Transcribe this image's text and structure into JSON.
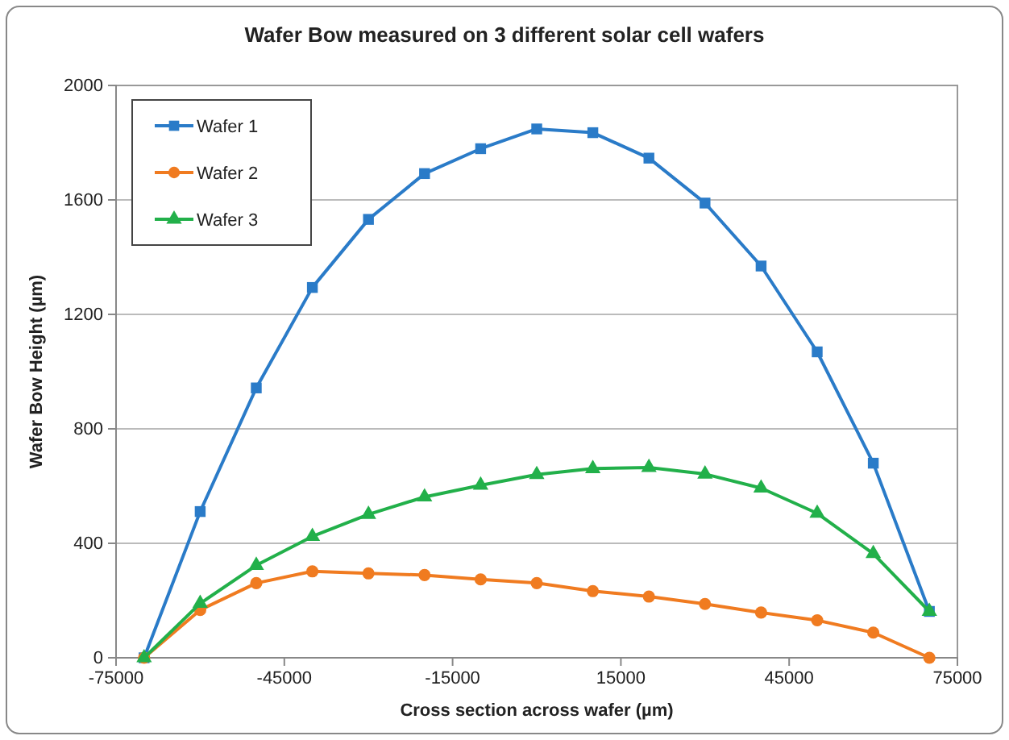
{
  "chart_data": {
    "type": "line",
    "title": "Wafer Bow measured on 3 different solar cell wafers",
    "xlabel": "Cross section across wafer (µm)",
    "ylabel": "Wafer Bow Height (µm)",
    "x": [
      -70000,
      -60000,
      -50000,
      -40000,
      -30000,
      -20000,
      -10000,
      0,
      10000,
      20000,
      30000,
      40000,
      50000,
      60000,
      70000
    ],
    "series": [
      {
        "name": "Wafer 1",
        "color": "#2a7bc8",
        "marker": "square",
        "values": [
          0,
          511,
          943,
          1294,
          1532,
          1692,
          1779,
          1848,
          1835,
          1746,
          1589,
          1369,
          1069,
          680,
          162
        ]
      },
      {
        "name": "Wafer 2",
        "color": "#f07b20",
        "marker": "circle",
        "values": [
          0,
          167,
          261,
          302,
          295,
          289,
          274,
          261,
          233,
          214,
          188,
          158,
          131,
          88,
          0
        ]
      },
      {
        "name": "Wafer 3",
        "color": "#22b04a",
        "marker": "triangle",
        "values": [
          0,
          190,
          323,
          424,
          501,
          562,
          603,
          640,
          661,
          665,
          642,
          593,
          505,
          364,
          162
        ]
      }
    ],
    "xlim": [
      -75000,
      75000
    ],
    "xticks": [
      -75000,
      -45000,
      -15000,
      15000,
      45000,
      75000
    ],
    "ylim": [
      0,
      2000
    ],
    "yticks": [
      0,
      400,
      800,
      1200,
      1600,
      2000
    ],
    "grid": "y",
    "legend": "top left",
    "line_style": "solid"
  }
}
